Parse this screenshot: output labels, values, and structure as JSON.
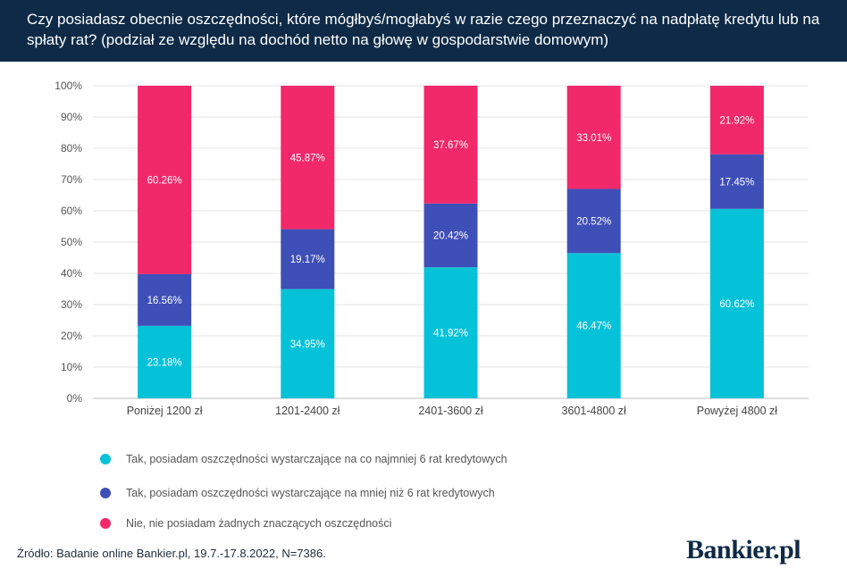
{
  "header": {
    "title": "Czy posiadasz obecnie oszczędności, które mógłbyś/mogłabyś w razie czego przeznaczyć na nadpłatę kredytu lub na spłaty rat?  (podział ze względu na dochód netto na głowę w gospodarstwie domowym)"
  },
  "colors": {
    "header_bg": "#0e2a47",
    "series_1": "#06c2d8",
    "series_2": "#3f4fb8",
    "series_3": "#f1286a"
  },
  "chart_data": {
    "type": "bar",
    "stacked": true,
    "title": "Czy posiadasz obecnie oszczędności, które mógłbyś/mogłabyś w razie czego przeznaczyć na nadpłatę kredytu lub na spłaty rat?  (podział ze względu na dochód netto na głowę w gospodarstwie domowym)",
    "categories": [
      "Poniżej 1200 zł",
      "1201-2400 zł",
      "2401-3600 zł",
      "3601-4800 zł",
      "Powyżej 4800 zł"
    ],
    "series": [
      {
        "name": "Tak, posiadam oszczędności wystarczające na co najmniej 6 rat kredytowych",
        "color": "#06c2d8",
        "values": [
          23.18,
          34.95,
          41.92,
          46.47,
          60.62
        ],
        "labels": [
          "23.18%",
          "34.95%",
          "41.92%",
          "46.47%",
          "60.62%"
        ]
      },
      {
        "name": "Tak, posiadam oszczędności wystarczające na mniej niż 6 rat kredytowych",
        "color": "#3f4fb8",
        "values": [
          16.56,
          19.17,
          20.42,
          20.52,
          17.45
        ],
        "labels": [
          "16.56%",
          "19.17%",
          "20.42%",
          "20.52%",
          "17.45%"
        ]
      },
      {
        "name": "Nie, nie posiadam żadnych znaczących oszczędności",
        "color": "#f1286a",
        "values": [
          60.26,
          45.87,
          37.67,
          33.01,
          21.92
        ],
        "labels": [
          "60.26%",
          "45.87%",
          "37.67%",
          "33.01%",
          "21.92%"
        ]
      }
    ],
    "y_ticks": [
      "0%",
      "10%",
      "20%",
      "30%",
      "40%",
      "50%",
      "60%",
      "70%",
      "80%",
      "90%",
      "100%"
    ],
    "ylim": [
      0,
      100
    ],
    "grid": true,
    "legend_position": "bottom"
  },
  "legend": {
    "items": [
      "Tak, posiadam oszczędności wystarczające na co najmniej 6 rat kredytowych",
      "Tak, posiadam oszczędności wystarczające na mniej niż 6 rat kredytowych",
      "Nie, nie posiadam żadnych znaczących oszczędności"
    ]
  },
  "footer": {
    "source": "Źródło: Badanie online Bankier.pl, 19.7.-17.8.2022, N=7386.",
    "logo": "Bankier.pl"
  }
}
